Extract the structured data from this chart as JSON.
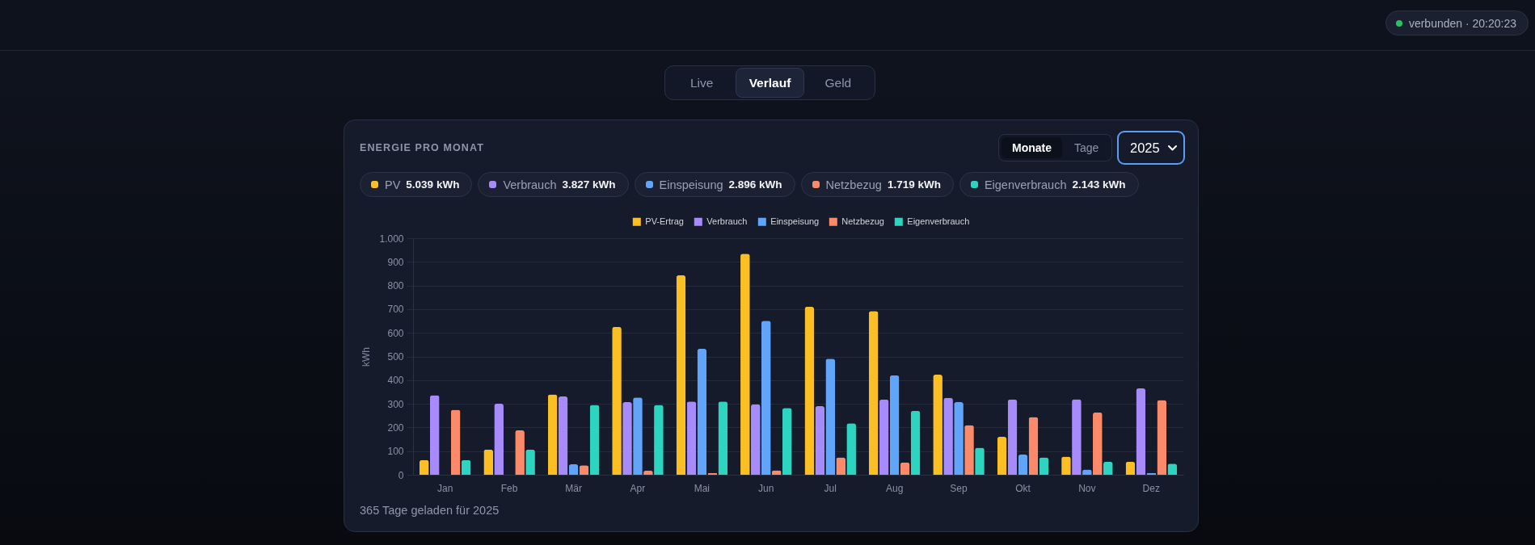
{
  "chart_data": {
    "type": "bar",
    "title": "ENERGIE PRO MONAT",
    "ylabel": "kWh",
    "categories": [
      "Jan",
      "Feb",
      "Mär",
      "Apr",
      "Mai",
      "Jun",
      "Jul",
      "Aug",
      "Sep",
      "Okt",
      "Nov",
      "Dez"
    ],
    "series": [
      {
        "name": "PV-Ertrag",
        "color": "#fbbf24",
        "values": [
          62,
          107,
          340,
          625,
          843,
          934,
          710,
          692,
          423,
          160,
          77,
          55
        ]
      },
      {
        "name": "Verbrauch",
        "color": "#a78bfa",
        "values": [
          336,
          300,
          331,
          307,
          310,
          298,
          290,
          318,
          325,
          318,
          319,
          365
        ]
      },
      {
        "name": "Einspeisung",
        "color": "#60a5fa",
        "values": [
          0,
          0,
          44,
          327,
          532,
          651,
          491,
          420,
          307,
          85,
          22,
          7
        ]
      },
      {
        "name": "Netzbezug",
        "color": "#fb8a6a",
        "values": [
          275,
          188,
          40,
          17,
          8,
          19,
          73,
          52,
          210,
          244,
          264,
          316
        ]
      },
      {
        "name": "Eigenverbrauch",
        "color": "#2dd4bf",
        "values": [
          62,
          107,
          295,
          295,
          310,
          282,
          218,
          270,
          114,
          73,
          55,
          47
        ]
      }
    ],
    "ylim": [
      0,
      1000
    ],
    "yticks": [
      0,
      100,
      200,
      300,
      400,
      500,
      600,
      700,
      800,
      900,
      {
        "value": 1000,
        "label": "1.000"
      }
    ],
    "grid": "y",
    "legend": "top",
    "annotations": [
      "verbunden · 20:20:23",
      "Live",
      "Verlauf",
      "Geld",
      "Monate",
      "Tage",
      "2025",
      "PV",
      "5.039 kWh",
      "Verbrauch",
      "3.827 kWh",
      "Einspeisung",
      "2.896 kWh",
      "Netzbezug",
      "1.719 kWh",
      "Eigenverbrauch",
      "2.143 kWh",
      "365 Tage geladen für 2025"
    ]
  }
}
